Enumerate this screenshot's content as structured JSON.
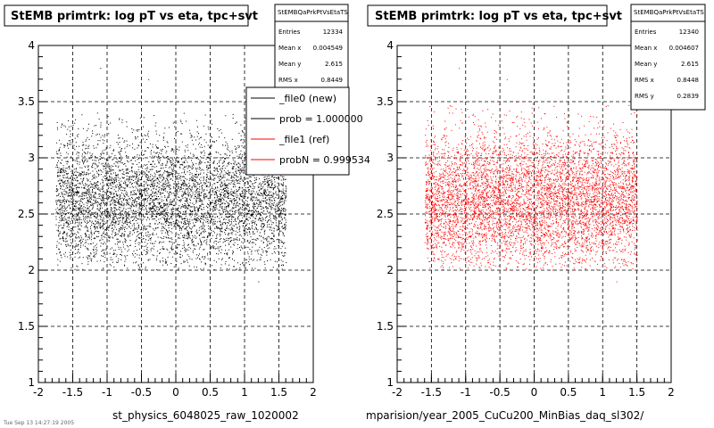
{
  "chart_data": [
    {
      "type": "scatter",
      "title": "StEMB primtrk: log pT vs eta, tpc+svt",
      "xlabel": "st_physics_6048025_raw_1020002",
      "xlim": [
        -2,
        2
      ],
      "ylim": [
        1,
        4
      ],
      "x_ticks": [
        "-2",
        "-1.5",
        "-1",
        "-0.5",
        "0",
        "0.5",
        "1",
        "1.5",
        "2"
      ],
      "y_ticks": [
        "1",
        "1.5",
        "2",
        "2.5",
        "3",
        "3.5",
        "4"
      ],
      "grid": true,
      "point_color": "#000000",
      "point_cloud": {
        "x_range": [
          -1.75,
          1.6
        ],
        "y_range": [
          2.0,
          3.4
        ],
        "y_center": 2.615,
        "count": 12334
      },
      "stats": {
        "name": "StEMBQaPrkPtVsEtaTS",
        "rows": [
          {
            "label": "Entries",
            "value": "12334"
          },
          {
            "label": "Mean x",
            "value": "0.004549"
          },
          {
            "label": "Mean y",
            "value": "2.615"
          },
          {
            "label": "RMS x",
            "value": "0.8449"
          }
        ]
      },
      "legend": {
        "position": "top-right",
        "entries": [
          {
            "label": "_file0 (new)",
            "color": "#000000"
          },
          {
            "label": "prob = 1.000000",
            "color": "#000000"
          },
          {
            "label": "_file1 (ref)",
            "color": "#ff0000"
          },
          {
            "label": "probN = 0.999534",
            "color": "#ff0000"
          }
        ]
      }
    },
    {
      "type": "scatter",
      "title": "StEMB primtrk: log pT vs eta, tpc+svt",
      "xlabel": "mparision/year_2005_CuCu200_MinBias_daq_sl302/",
      "xlim": [
        -2,
        2
      ],
      "ylim": [
        1,
        4
      ],
      "x_ticks": [
        "-2",
        "-1.5",
        "-1",
        "-0.5",
        "0",
        "0.5",
        "1",
        "1.5",
        "2"
      ],
      "y_ticks": [
        "1",
        "1.5",
        "2",
        "2.5",
        "3",
        "3.5",
        "4"
      ],
      "grid": true,
      "point_color": "#ff0000",
      "point_cloud": {
        "x_range": [
          -1.6,
          1.5
        ],
        "y_range": [
          2.0,
          3.5
        ],
        "y_center": 2.615,
        "count": 12340
      },
      "stats": {
        "name": "StEMBQaPrkPtVsEtaTS",
        "rows": [
          {
            "label": "Entries",
            "value": "12340"
          },
          {
            "label": "Mean x",
            "value": "0.004607"
          },
          {
            "label": "Mean y",
            "value": "2.615"
          },
          {
            "label": "RMS x",
            "value": "0.8448"
          },
          {
            "label": "RMS y",
            "value": "0.2839"
          }
        ]
      }
    }
  ],
  "footer_text": "Tue Sep 13 14:27:19 2005"
}
